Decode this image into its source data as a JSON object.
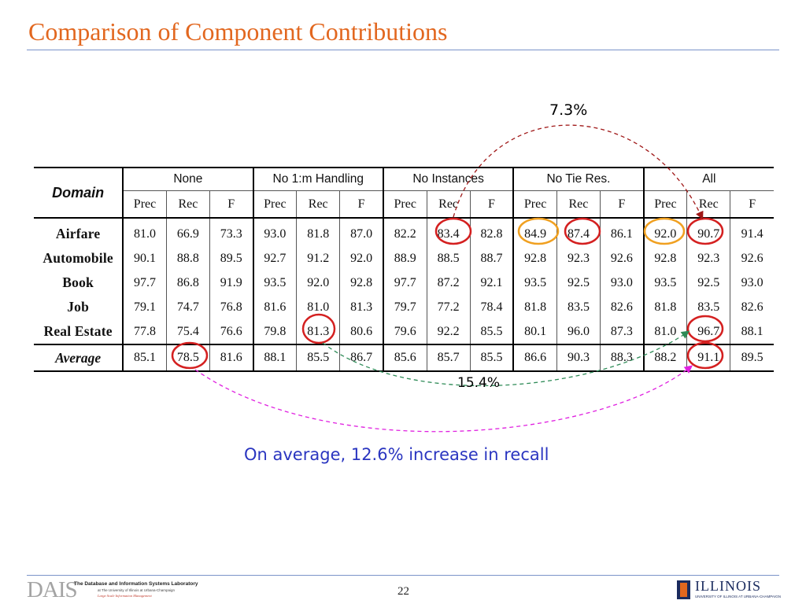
{
  "slide": {
    "title": "Comparison of Component Contributions",
    "page_number": "22",
    "summary": "On average, 12.6% increase in recall",
    "annotation_top": "7.3%",
    "annotation_bottom": "15.4%"
  },
  "table": {
    "domain_header": "Domain",
    "groups": [
      "None",
      "No 1:m Handling",
      "No Instances",
      "No Tie Res.",
      "All"
    ],
    "metrics": [
      "Prec",
      "Rec",
      "F"
    ],
    "rows": [
      {
        "label": "Airfare",
        "values": [
          "81.0",
          "66.9",
          "73.3",
          "93.0",
          "81.8",
          "87.0",
          "82.2",
          "83.4",
          "82.8",
          "84.9",
          "87.4",
          "86.1",
          "92.0",
          "90.7",
          "91.4"
        ]
      },
      {
        "label": "Automobile",
        "values": [
          "90.1",
          "88.8",
          "89.5",
          "92.7",
          "91.2",
          "92.0",
          "88.9",
          "88.5",
          "88.7",
          "92.8",
          "92.3",
          "92.6",
          "92.8",
          "92.3",
          "92.6"
        ]
      },
      {
        "label": "Book",
        "values": [
          "97.7",
          "86.8",
          "91.9",
          "93.5",
          "92.0",
          "92.8",
          "97.7",
          "87.2",
          "92.1",
          "93.5",
          "92.5",
          "93.0",
          "93.5",
          "92.5",
          "93.0"
        ]
      },
      {
        "label": "Job",
        "values": [
          "79.1",
          "74.7",
          "76.8",
          "81.6",
          "81.0",
          "81.3",
          "79.7",
          "77.2",
          "78.4",
          "81.8",
          "83.5",
          "82.6",
          "81.8",
          "83.5",
          "82.6"
        ]
      },
      {
        "label": "Real Estate",
        "values": [
          "77.8",
          "75.4",
          "76.6",
          "79.8",
          "81.3",
          "80.6",
          "79.6",
          "92.2",
          "85.5",
          "80.1",
          "96.0",
          "87.3",
          "81.0",
          "96.7",
          "88.1"
        ]
      }
    ],
    "average": {
      "label": "Average",
      "values": [
        "85.1",
        "78.5",
        "81.6",
        "88.1",
        "85.5",
        "86.7",
        "85.6",
        "85.7",
        "85.5",
        "86.6",
        "90.3",
        "88.3",
        "88.2",
        "91.1",
        "89.5"
      ]
    }
  },
  "footer": {
    "lab_logo_text": "DAIS",
    "lab_name": "The Database and Information Systems Laboratory",
    "lab_affiliation": "at The University of Illinois at Urbana-Champaign",
    "lab_tagline": "Large Scale Information Management",
    "univ_logo_text": "ILLINOIS",
    "univ_subtitle": "UNIVERSITY OF ILLINOIS AT URBANA-CHAMPAIGN"
  },
  "colors": {
    "title": "#e2671f",
    "rule": "#7a93c9",
    "summary_text": "#2a35c0",
    "highlight_red": "#d42020",
    "highlight_orange": "#f0a020",
    "arrow_dark_red": "#a01818",
    "arrow_green": "#2e8b57",
    "arrow_magenta": "#e020e0"
  }
}
